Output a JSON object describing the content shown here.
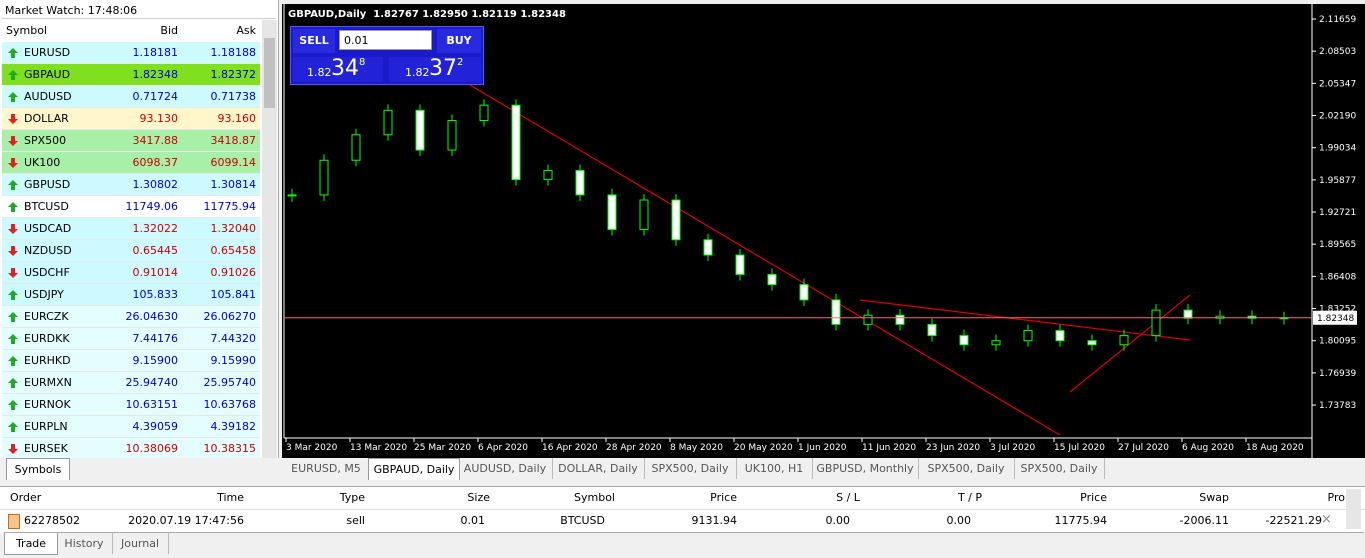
{
  "market_watch": {
    "title": "Market Watch: 17:48:06",
    "headers": [
      "Symbol",
      "Bid",
      "Ask"
    ],
    "tab": "Symbols",
    "rows": [
      {
        "symbol": "EURUSD",
        "bid": "1.18181",
        "ask": "1.18188",
        "dir": "up",
        "bg": "#ccfaff"
      },
      {
        "symbol": "GBPAUD",
        "bid": "1.82348",
        "ask": "1.82372",
        "dir": "up",
        "bg": "#80e020"
      },
      {
        "symbol": "AUDUSD",
        "bid": "0.71724",
        "ask": "0.71738",
        "dir": "up",
        "bg": "#ccfaff"
      },
      {
        "symbol": "DOLLAR",
        "bid": "93.130",
        "ask": "93.160",
        "dir": "down",
        "bg": "#fff6cc"
      },
      {
        "symbol": "SPX500",
        "bid": "3417.88",
        "ask": "3418.87",
        "dir": "down",
        "bg": "#a8f0a8"
      },
      {
        "symbol": "UK100",
        "bid": "6098.37",
        "ask": "6099.14",
        "dir": "down",
        "bg": "#a8f0a8"
      },
      {
        "symbol": "GBPUSD",
        "bid": "1.30802",
        "ask": "1.30814",
        "dir": "up",
        "bg": "#ccfaff"
      },
      {
        "symbol": "BTCUSD",
        "bid": "11749.06",
        "ask": "11775.94",
        "dir": "up",
        "bg": "#ffffff"
      },
      {
        "symbol": "USDCAD",
        "bid": "1.32022",
        "ask": "1.32040",
        "dir": "down",
        "bg": "#ccfaff"
      },
      {
        "symbol": "NZDUSD",
        "bid": "0.65445",
        "ask": "0.65458",
        "dir": "down",
        "bg": "#ccfaff"
      },
      {
        "symbol": "USDCHF",
        "bid": "0.91014",
        "ask": "0.91026",
        "dir": "down",
        "bg": "#ccfaff"
      },
      {
        "symbol": "USDJPY",
        "bid": "105.833",
        "ask": "105.841",
        "dir": "up",
        "bg": "#ccfaff"
      },
      {
        "symbol": "EURCZK",
        "bid": "26.04630",
        "ask": "26.06270",
        "dir": "up",
        "bg": "#e4fdff"
      },
      {
        "symbol": "EURDKK",
        "bid": "7.44176",
        "ask": "7.44320",
        "dir": "up",
        "bg": "#e4fdff"
      },
      {
        "symbol": "EURHKD",
        "bid": "9.15900",
        "ask": "9.15990",
        "dir": "up",
        "bg": "#e4fdff"
      },
      {
        "symbol": "EURMXN",
        "bid": "25.94740",
        "ask": "25.95740",
        "dir": "up",
        "bg": "#e4fdff"
      },
      {
        "symbol": "EURNOK",
        "bid": "10.63151",
        "ask": "10.63768",
        "dir": "up",
        "bg": "#e4fdff"
      },
      {
        "symbol": "EURPLN",
        "bid": "4.39059",
        "ask": "4.39182",
        "dir": "up",
        "bg": "#e4fdff"
      },
      {
        "symbol": "EURSEK",
        "bid": "10.38069",
        "ask": "10.38315",
        "dir": "down",
        "bg": "#e4fdff"
      }
    ]
  },
  "trade_panel": {
    "sell": "SELL",
    "buy": "BUY",
    "lots": "0.01",
    "sell_price": [
      "1.82",
      "34",
      "8"
    ],
    "buy_price": [
      "1.82",
      "37",
      "2"
    ]
  },
  "chart_data": {
    "type": "candlestick",
    "title": "GBPAUD,Daily  1.82767 1.82950 1.82119 1.82348",
    "color": "#00ff00",
    "xticks": [
      "3 Mar 2020",
      "13 Mar 2020",
      "25 Mar 2020",
      "6 Apr 2020",
      "16 Apr 2020",
      "28 Apr 2020",
      "8 May 2020",
      "20 May 2020",
      "1 Jun 2020",
      "11 Jun 2020",
      "23 Jun 2020",
      "3 Jul 2020",
      "15 Jul 2020",
      "27 Jul 2020",
      "6 Aug 2020",
      "18 Aug 2020"
    ],
    "values": [
      1.944,
      1.978,
      2.003,
      2.027,
      1.988,
      2.017,
      2.032,
      1.959,
      1.968,
      1.944,
      1.91,
      1.939,
      1.9,
      1.885,
      1.866,
      1.856,
      1.841,
      1.817,
      1.826,
      1.817,
      1.806,
      1.797,
      1.801,
      1.811,
      1.801,
      1.797,
      1.806,
      1.831,
      1.823,
      1.825,
      1.823,
      1.8235
    ],
    "ylim": [
      1.6859,
      2.1313
    ],
    "yticks": [
      2.11659,
      2.08503,
      2.05347,
      {
        "value": 2.0219,
        "label": "2.02190"
      },
      1.99034,
      1.95877,
      1.92721,
      1.89565,
      1.86408,
      1.83252,
      1.80095,
      1.76939,
      1.73783
    ],
    "last_price": 1.82348
  },
  "chart_tabs": {
    "items": [
      "EURUSD, M5",
      "GBPAUD, Daily",
      "AUDUSD, Daily",
      "DOLLAR, Daily",
      "SPX500, Daily",
      "UK100, H1",
      "GBPUSD, Monthly",
      "SPX500, Daily",
      "SPX500, Daily"
    ],
    "active": 1
  },
  "orders": {
    "headers": [
      "Order",
      "Time",
      "Type",
      "Size",
      "Symbol",
      "Price",
      "S / L",
      "T / P",
      "Price",
      "Swap",
      "Pro"
    ],
    "rows": [
      [
        "62278502",
        "2020.07.19 17:47:56",
        "sell",
        "0.01",
        "BTCUSD",
        "9131.94",
        "0.00",
        "0.00",
        "11775.94",
        "-2006.11",
        "-22521.29"
      ]
    ]
  },
  "terminal_tabs": {
    "items": [
      "Trade",
      "History",
      "Journal"
    ],
    "active": 0
  }
}
